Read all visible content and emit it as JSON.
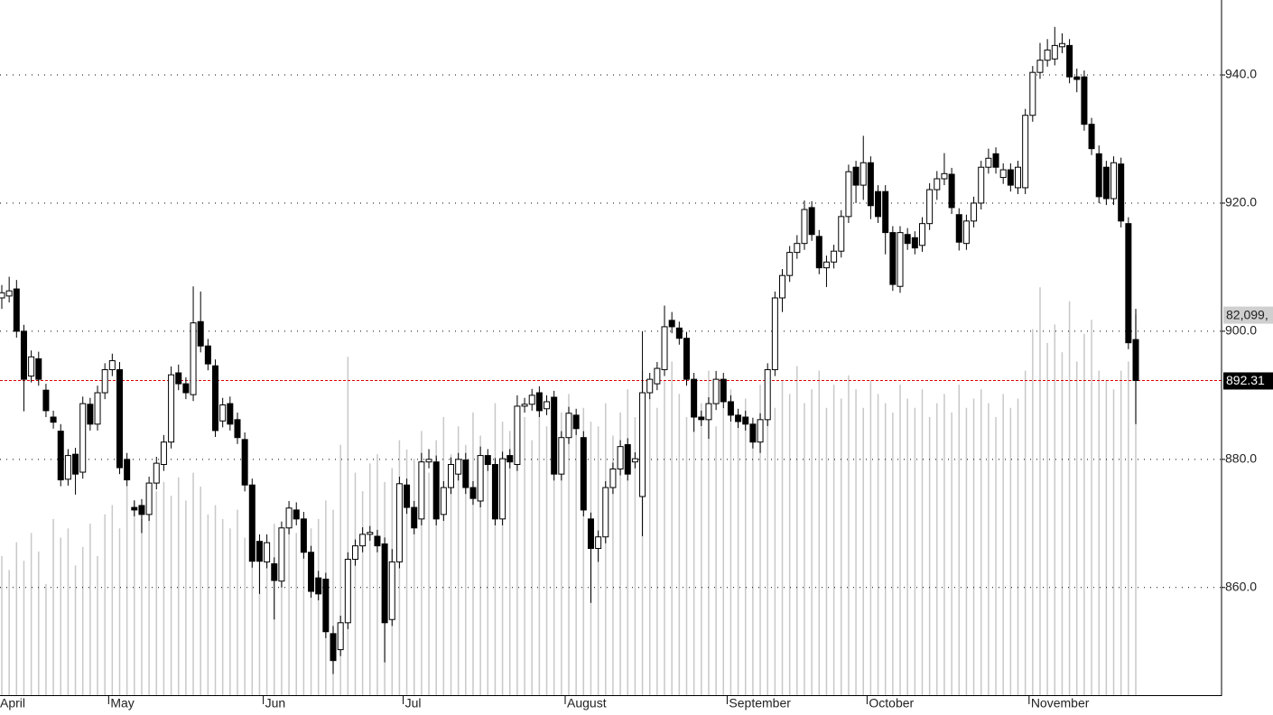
{
  "chart_data": {
    "type": "candlestick",
    "categories": [
      "April",
      null,
      null,
      null,
      null,
      null,
      null,
      null,
      null,
      null,
      null,
      null,
      null,
      null,
      null,
      "May",
      null,
      null,
      null,
      null,
      null,
      null,
      null,
      null,
      null,
      null,
      null,
      null,
      null,
      null,
      null,
      null,
      null,
      null,
      null,
      null,
      "Jun",
      null,
      null,
      null,
      null,
      null,
      null,
      null,
      null,
      null,
      null,
      null,
      null,
      null,
      null,
      null,
      null,
      null,
      null,
      "Jul",
      null,
      null,
      null,
      null,
      null,
      null,
      null,
      null,
      null,
      null,
      null,
      null,
      null,
      null,
      null,
      null,
      null,
      null,
      null,
      null,
      null,
      "August",
      null,
      null,
      null,
      null,
      null,
      null,
      null,
      null,
      null,
      null,
      null,
      null,
      null,
      null,
      null,
      null,
      null,
      null,
      null,
      null,
      null,
      "September",
      null,
      null,
      null,
      null,
      null,
      null,
      null,
      null,
      null,
      null,
      null,
      null,
      null,
      null,
      null,
      null,
      null,
      null,
      "October",
      null,
      null,
      null,
      null,
      null,
      null,
      null,
      null,
      null,
      null,
      null,
      null,
      null,
      null,
      null,
      null,
      null,
      null,
      null,
      null,
      null,
      "November",
      null,
      null,
      null,
      null,
      null,
      null,
      null,
      null,
      null,
      null,
      null,
      null,
      null,
      null
    ],
    "open": [
      905.2,
      905.5,
      906.6,
      900.0,
      893.0,
      895.7,
      890.8,
      886.6,
      884.4,
      876.9,
      880.8,
      878.0,
      888.6,
      885.5,
      890.4,
      894.0,
      894.0,
      880.0,
      872.5,
      872.8,
      871.4,
      876.3,
      879.2,
      882.7,
      893.5,
      891.8,
      890.1,
      901.5,
      897.7,
      894.6,
      886.0,
      888.7,
      886.2,
      883.1,
      876.0,
      867.2,
      864.0,
      863.7,
      861.0,
      869.3,
      872.1,
      870.7,
      865.5,
      861.5,
      861.3,
      852.8,
      850.3,
      854.5,
      864.4,
      866.5,
      868.3,
      868.0,
      866.8,
      855.0,
      864.0,
      876.0,
      872.5,
      870.7,
      879.6,
      879.6,
      871.4,
      875.6,
      877.7,
      879.9,
      875.6,
      873.5,
      880.6,
      879.2,
      870.7,
      880.6,
      879.2,
      888.3,
      888.6,
      890.4,
      887.9,
      889.7,
      877.7,
      883.4,
      886.9,
      883.4,
      870.7,
      866.1,
      867.9,
      875.6,
      878.5,
      882.3,
      879.6,
      874.2,
      890.4,
      891.8,
      894.0,
      901.7,
      900.5,
      898.9,
      892.5,
      886.6,
      886.2,
      888.7,
      892.5,
      889.0,
      886.9,
      886.6,
      885.5,
      882.7,
      886.2,
      894.0,
      905.2,
      908.7,
      912.3,
      913.7,
      919.3,
      914.8,
      909.9,
      910.8,
      912.5,
      917.9,
      925.6,
      922.8,
      926.3,
      921.8,
      921.8,
      915.4,
      907.0,
      915.1,
      914.6,
      913.4,
      916.8,
      922.1,
      923.8,
      924.5,
      918.2,
      913.7,
      917.2,
      920.0,
      925.6,
      927.7,
      924.0,
      925.2,
      922.4,
      922.4,
      933.7,
      940.4,
      942.3,
      942.5,
      944.4,
      944.6,
      939.7,
      939.7,
      932.3,
      927.7,
      925.6,
      920.7,
      926.1,
      916.8,
      898.7
    ],
    "high": [
      907.2,
      908.5,
      908.0,
      901.0,
      897.0,
      896.8,
      891.8,
      887.6,
      885.5,
      881.6,
      881.8,
      889.8,
      889.6,
      891.5,
      895.0,
      896.5,
      895.2,
      881.0,
      873.6,
      873.8,
      877.3,
      880.4,
      883.8,
      894.5,
      894.8,
      892.8,
      907.0,
      906.2,
      898.8,
      895.6,
      889.6,
      889.8,
      887.3,
      884.2,
      877.0,
      868.3,
      868.3,
      864.7,
      870.3,
      873.5,
      873.3,
      871.8,
      866.5,
      862.6,
      862.3,
      854.0,
      855.6,
      865.5,
      867.5,
      869.4,
      869.6,
      869.0,
      867.8,
      866.0,
      877.3,
      877.0,
      873.5,
      881.0,
      881.6,
      880.6,
      876.6,
      880.3,
      881.0,
      881.0,
      876.6,
      882.0,
      881.6,
      880.2,
      881.2,
      881.6,
      890.0,
      889.6,
      891.0,
      891.4,
      890.0,
      890.7,
      884.4,
      888.2,
      887.9,
      884.4,
      871.7,
      868.9,
      876.6,
      879.5,
      883.0,
      883.3,
      881.1,
      900.0,
      893.5,
      895.2,
      904.0,
      903.0,
      901.5,
      899.9,
      893.5,
      887.6,
      889.7,
      893.8,
      893.5,
      890.0,
      887.9,
      887.6,
      886.5,
      887.2,
      895.0,
      906.2,
      909.7,
      913.3,
      915.0,
      920.4,
      920.3,
      915.8,
      911.8,
      913.5,
      918.9,
      926.0,
      926.6,
      930.5,
      927.3,
      922.8,
      922.8,
      916.4,
      916.4,
      916.1,
      915.6,
      917.8,
      923.1,
      925.0,
      927.8,
      925.5,
      919.2,
      918.2,
      921.0,
      926.6,
      928.5,
      928.7,
      926.2,
      926.2,
      926.6,
      934.7,
      941.4,
      945.0,
      945.6,
      947.5,
      946.5,
      945.6,
      941.0,
      940.7,
      933.3,
      929.0,
      926.6,
      927.3,
      927.1,
      917.8,
      903.5
    ],
    "low": [
      903.5,
      904.5,
      899.0,
      887.5,
      892.0,
      891.5,
      886.6,
      884.8,
      875.8,
      875.9,
      874.5,
      877.0,
      884.5,
      884.5,
      889.4,
      893.0,
      877.7,
      875.8,
      871.1,
      868.5,
      870.4,
      875.3,
      878.2,
      881.7,
      890.8,
      889.4,
      889.1,
      896.7,
      893.9,
      883.5,
      885.0,
      884.5,
      882.4,
      875.0,
      863.1,
      859.0,
      863.0,
      855.0,
      860.0,
      868.3,
      869.7,
      864.5,
      858.4,
      858.0,
      852.1,
      846.5,
      849.3,
      853.5,
      863.4,
      865.5,
      867.3,
      865.5,
      848.3,
      854.0,
      863.0,
      871.5,
      868.3,
      869.7,
      878.6,
      869.7,
      870.4,
      874.6,
      876.7,
      874.6,
      872.9,
      872.5,
      878.2,
      869.7,
      869.7,
      878.6,
      878.2,
      887.3,
      887.6,
      886.6,
      886.9,
      876.7,
      876.7,
      882.4,
      883.8,
      871.1,
      857.6,
      864.0,
      866.9,
      874.6,
      877.5,
      876.7,
      878.6,
      868.0,
      889.4,
      890.8,
      893.0,
      899.7,
      897.9,
      891.5,
      884.3,
      885.2,
      883.2,
      887.7,
      888.0,
      885.9,
      884.9,
      884.5,
      881.7,
      881.0,
      885.2,
      893.0,
      903.0,
      907.7,
      911.3,
      912.7,
      914.1,
      908.9,
      906.9,
      909.8,
      911.5,
      916.9,
      920.0,
      920.5,
      917.5,
      916.9,
      912.0,
      906.3,
      906.0,
      912.7,
      912.0,
      912.4,
      915.8,
      920.5,
      922.8,
      918.3,
      912.6,
      912.7,
      916.2,
      919.0,
      924.6,
      924.6,
      923.0,
      921.8,
      921.4,
      921.4,
      932.7,
      939.4,
      941.3,
      941.5,
      943.4,
      938.7,
      937.3,
      931.3,
      927.5,
      920.0,
      919.7,
      919.7,
      916.2,
      897.2,
      885.5
    ],
    "close": [
      906.0,
      906.3,
      900.0,
      892.5,
      896.0,
      892.5,
      887.6,
      885.8,
      876.8,
      880.6,
      877.7,
      888.7,
      885.5,
      890.4,
      894.0,
      895.4,
      878.7,
      876.8,
      872.1,
      871.4,
      876.3,
      879.4,
      882.7,
      893.2,
      891.8,
      890.4,
      901.3,
      897.7,
      894.9,
      884.5,
      888.5,
      885.5,
      883.4,
      876.0,
      864.1,
      864.1,
      867.0,
      861.1,
      869.3,
      872.4,
      870.7,
      865.5,
      859.4,
      859.0,
      853.1,
      848.6,
      854.5,
      864.4,
      866.5,
      868.3,
      868.6,
      866.5,
      854.5,
      864.0,
      876.2,
      872.5,
      869.3,
      879.6,
      880.0,
      870.7,
      875.6,
      879.2,
      880.0,
      875.6,
      873.9,
      880.6,
      879.2,
      870.7,
      880.1,
      879.6,
      888.3,
      888.6,
      890.0,
      887.6,
      889.0,
      877.7,
      883.4,
      887.2,
      884.8,
      872.1,
      866.1,
      867.9,
      875.6,
      878.5,
      882.0,
      877.7,
      880.1,
      890.4,
      892.5,
      894.2,
      900.7,
      900.7,
      898.9,
      892.5,
      886.6,
      886.2,
      888.7,
      892.5,
      889.0,
      886.9,
      885.9,
      885.5,
      882.7,
      886.2,
      894.0,
      905.2,
      908.7,
      912.3,
      913.7,
      919.0,
      915.1,
      909.9,
      910.8,
      912.5,
      917.9,
      924.9,
      922.8,
      926.3,
      919.6,
      917.9,
      915.4,
      907.3,
      915.4,
      913.7,
      913.0,
      916.8,
      922.1,
      923.8,
      924.6,
      919.3,
      913.9,
      917.2,
      920.0,
      925.6,
      927.0,
      925.6,
      925.2,
      922.8,
      925.6,
      933.7,
      940.4,
      942.3,
      943.9,
      944.6,
      944.9,
      939.7,
      939.3,
      932.3,
      928.5,
      921.0,
      920.7,
      926.3,
      917.2,
      898.2,
      892.31
    ],
    "volume": [
      30000,
      27000,
      33000,
      29000,
      35000,
      31000,
      24000,
      38000,
      34000,
      36000,
      28000,
      32000,
      37000,
      30000,
      39000,
      41000,
      36000,
      45000,
      42000,
      38000,
      40000,
      44000,
      46000,
      43000,
      47000,
      42000,
      48000,
      45000,
      39000,
      41000,
      38000,
      36000,
      40000,
      34000,
      35000,
      32000,
      30000,
      37000,
      33000,
      39000,
      35000,
      31000,
      36000,
      38000,
      42000,
      40000,
      54000,
      73000,
      48000,
      44000,
      50000,
      52000,
      46000,
      49000,
      55000,
      53000,
      51000,
      57000,
      48000,
      55000,
      60000,
      52000,
      58000,
      54000,
      61000,
      56000,
      50000,
      63000,
      59000,
      57000,
      62000,
      60000,
      55000,
      64000,
      58000,
      53000,
      61000,
      65000,
      57000,
      62000,
      59000,
      58000,
      63000,
      56000,
      61000,
      66000,
      60000,
      70000,
      64000,
      62000,
      68000,
      72000,
      65000,
      60000,
      67000,
      63000,
      70000,
      58000,
      62000,
      66000,
      61000,
      64000,
      58000,
      67000,
      69000,
      62000,
      68000,
      65000,
      71000,
      63000,
      66000,
      70000,
      62000,
      67000,
      64000,
      69000,
      66000,
      62000,
      68000,
      65000,
      63000,
      61000,
      67000,
      64000,
      62000,
      66000,
      60000,
      63000,
      65000,
      61000,
      67000,
      62000,
      64000,
      66000,
      63000,
      60000,
      65000,
      62000,
      64000,
      70000,
      79000,
      88000,
      76000,
      80000,
      74000,
      85000,
      72000,
      78000,
      81000,
      70000,
      68000,
      66000,
      70000,
      72000,
      82099
    ],
    "volume_label": "82,099,",
    "ylim": [
      843.2,
      951.7
    ],
    "yticks": [
      {
        "value": 860,
        "label": "860.0"
      },
      {
        "value": 880,
        "label": "880.0"
      },
      {
        "value": 900,
        "label": "900.0"
      },
      {
        "value": 920,
        "label": "920.0"
      },
      {
        "value": 940,
        "label": "940.0"
      }
    ],
    "y2lim": [
      0,
      150000
    ],
    "grid": true,
    "up_color": "#ffffff",
    "down_color": "#000000",
    "volume_color": "#c8c8c8",
    "price_line_color": "#e00000"
  }
}
